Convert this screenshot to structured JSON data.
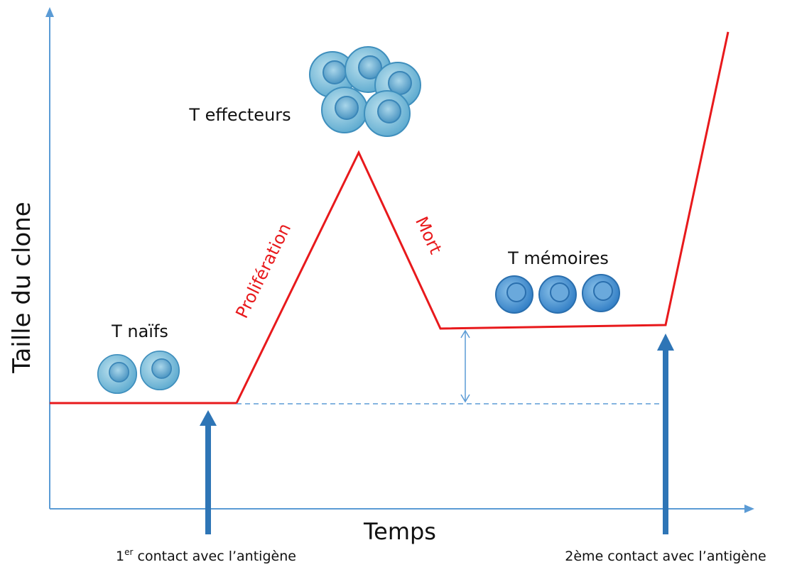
{
  "axes": {
    "y_label": "Taille du clone",
    "x_label": "Temps"
  },
  "phases": {
    "proliferation": "Prolifération",
    "death": "Mort"
  },
  "cells": {
    "naive": "T naïfs",
    "effector": "T effecteurs",
    "memory": "T mémoires"
  },
  "contacts": {
    "first": {
      "number": "1",
      "superscript": "er",
      "text": " contact avec l’antigène"
    },
    "second": "2ème contact avec l’antigène"
  }
}
